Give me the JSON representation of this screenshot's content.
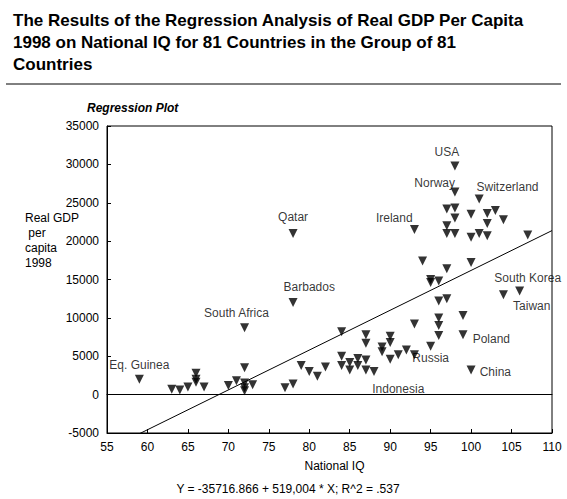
{
  "chart_data": {
    "type": "scatter",
    "title": "The Results of the Regression Analysis of Real GDP Per Capita 1998 on National IQ for 81 Countries in the Group of 81 Countries",
    "subtitle": "Regression Plot",
    "x_label": "National IQ",
    "y_label": "Real GDP per capita 1998",
    "footer": "Y = -35716.866 + 519,004 * X; R^2 = .537",
    "color": "#000000",
    "marker": "triangle-down",
    "grid": false,
    "x": [
      59,
      63,
      64,
      65,
      66,
      66,
      66,
      67,
      70,
      71,
      72,
      72,
      72,
      72,
      72,
      73,
      77,
      78,
      78,
      78,
      79,
      80,
      81,
      82,
      84,
      84,
      84,
      85,
      85,
      86,
      86,
      87,
      87,
      87,
      87,
      88,
      89,
      89,
      90,
      90,
      90,
      91,
      92,
      93,
      93,
      93,
      94,
      95,
      95,
      95,
      96,
      96,
      96,
      96,
      96,
      97,
      97,
      97,
      97,
      97,
      98,
      98,
      98,
      98,
      98,
      99,
      99,
      100,
      100,
      100,
      100,
      101,
      101,
      102,
      102,
      102,
      103,
      104,
      104,
      106,
      107
    ],
    "values": [
      2000,
      700,
      600,
      1000,
      2800,
      2000,
      1600,
      1000,
      1200,
      1800,
      1500,
      3500,
      900,
      500,
      8700,
      1300,
      900,
      1400,
      21000,
      12000,
      3800,
      3000,
      2400,
      3600,
      8200,
      5000,
      3800,
      3200,
      4200,
      4700,
      3800,
      4500,
      3200,
      6700,
      7800,
      3000,
      5600,
      6200,
      4600,
      6800,
      7600,
      5200,
      5800,
      9200,
      5200,
      21500,
      17400,
      14600,
      15000,
      6300,
      12200,
      10000,
      9000,
      7700,
      14800,
      12500,
      16400,
      21000,
      22000,
      24200,
      29800,
      26400,
      24300,
      23000,
      21000,
      10300,
      7800,
      3200,
      23500,
      20500,
      17200,
      21000,
      25500,
      23600,
      22300,
      20700,
      24000,
      22800,
      13000,
      13500,
      20800
    ],
    "xlim": [
      55,
      110
    ],
    "xticks": [
      55,
      60,
      65,
      70,
      75,
      80,
      85,
      90,
      95,
      100,
      105,
      110
    ],
    "ylim": [
      -5000,
      35000
    ],
    "yticks": [
      -5000,
      0,
      5000,
      10000,
      15000,
      20000,
      25000,
      30000,
      35000
    ],
    "regression": {
      "intercept": -35716.866,
      "slope": 519.004
    },
    "annotations": [
      {
        "text": "USA",
        "x": 97,
        "y": 31600
      },
      {
        "text": "Norway",
        "x": 95.5,
        "y": 27600
      },
      {
        "text": "Switzerland",
        "x": 104.5,
        "y": 27000
      },
      {
        "text": "Ireland",
        "x": 90.5,
        "y": 23000
      },
      {
        "text": "Qatar",
        "x": 78,
        "y": 23200
      },
      {
        "text": "Barbados",
        "x": 80,
        "y": 14000
      },
      {
        "text": "South Africa",
        "x": 71,
        "y": 10600
      },
      {
        "text": "Eq. Guinea",
        "x": 59,
        "y": 3900
      },
      {
        "text": "South Korea",
        "x": 107,
        "y": 15200
      },
      {
        "text": "Taiwan",
        "x": 107.5,
        "y": 11500
      },
      {
        "text": "Poland",
        "x": 102.5,
        "y": 7200
      },
      {
        "text": "Russia",
        "x": 95,
        "y": 4800
      },
      {
        "text": "China",
        "x": 103,
        "y": 3000
      },
      {
        "text": "Indonesia",
        "x": 91,
        "y": 700
      }
    ]
  }
}
